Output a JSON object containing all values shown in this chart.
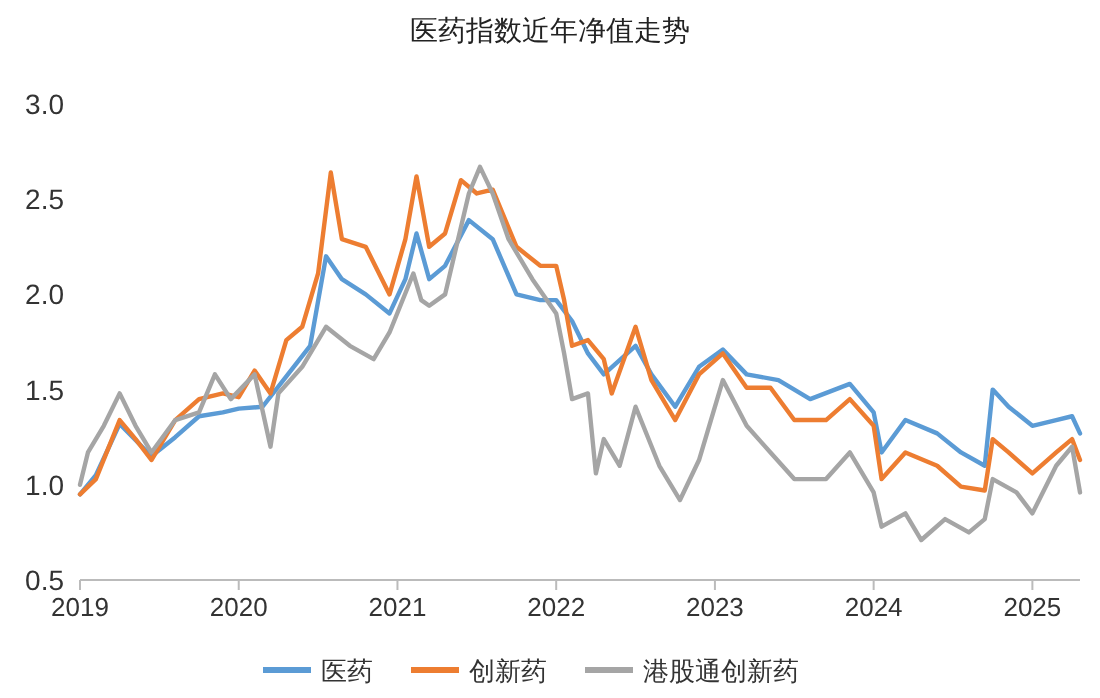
{
  "chart_data": {
    "type": "line",
    "title": "医药指数近年净值走势",
    "legend": "bottom",
    "xlim": [
      2019,
      2025.3
    ],
    "xticks": [
      2019,
      2020,
      2021,
      2022,
      2023,
      2024,
      2025
    ],
    "ylim": [
      0.5,
      3.0
    ],
    "yticks": [
      {
        "value": 0.5,
        "label": "0.5"
      },
      {
        "value": 1.0,
        "label": "1.0"
      },
      {
        "value": 1.5,
        "label": "1.5"
      },
      {
        "value": 2.0,
        "label": "2.0"
      },
      {
        "value": 2.5,
        "label": "2.5"
      },
      {
        "value": 3.0,
        "label": "3.0"
      }
    ],
    "series": [
      {
        "name": "医药",
        "color": "#5b9bd5",
        "x": [
          2019.0,
          2019.1,
          2019.25,
          2019.45,
          2019.6,
          2019.75,
          2019.9,
          2020.0,
          2020.15,
          2020.3,
          2020.45,
          2020.55,
          2020.65,
          2020.8,
          2020.95,
          2021.05,
          2021.12,
          2021.2,
          2021.3,
          2021.45,
          2021.6,
          2021.75,
          2021.9,
          2022.0,
          2022.1,
          2022.2,
          2022.3,
          2022.5,
          2022.6,
          2022.75,
          2022.9,
          2023.05,
          2023.2,
          2023.4,
          2023.6,
          2023.85,
          2024.0,
          2024.05,
          2024.2,
          2024.4,
          2024.55,
          2024.7,
          2024.75,
          2024.85,
          2025.0,
          2025.15,
          2025.25,
          2025.3
        ],
        "values": [
          0.95,
          1.05,
          1.32,
          1.15,
          1.25,
          1.36,
          1.38,
          1.4,
          1.41,
          1.57,
          1.73,
          2.2,
          2.08,
          2.0,
          1.9,
          2.08,
          2.32,
          2.08,
          2.15,
          2.39,
          2.29,
          2.0,
          1.97,
          1.97,
          1.86,
          1.69,
          1.58,
          1.73,
          1.58,
          1.41,
          1.62,
          1.71,
          1.58,
          1.55,
          1.45,
          1.53,
          1.38,
          1.17,
          1.34,
          1.27,
          1.17,
          1.1,
          1.5,
          1.41,
          1.31,
          1.34,
          1.36,
          1.27
        ]
      },
      {
        "name": "创新药",
        "color": "#ed7d31",
        "x": [
          2019.0,
          2019.1,
          2019.25,
          2019.35,
          2019.45,
          2019.6,
          2019.75,
          2019.9,
          2020.0,
          2020.1,
          2020.2,
          2020.3,
          2020.4,
          2020.5,
          2020.58,
          2020.65,
          2020.8,
          2020.95,
          2021.05,
          2021.12,
          2021.2,
          2021.3,
          2021.4,
          2021.5,
          2021.6,
          2021.75,
          2021.9,
          2022.0,
          2022.05,
          2022.1,
          2022.2,
          2022.3,
          2022.35,
          2022.5,
          2022.6,
          2022.75,
          2022.9,
          2023.05,
          2023.2,
          2023.35,
          2023.5,
          2023.7,
          2023.85,
          2024.0,
          2024.05,
          2024.2,
          2024.4,
          2024.55,
          2024.7,
          2024.75,
          2024.85,
          2025.0,
          2025.15,
          2025.25,
          2025.3
        ],
        "values": [
          0.95,
          1.03,
          1.34,
          1.24,
          1.13,
          1.34,
          1.45,
          1.48,
          1.46,
          1.6,
          1.48,
          1.76,
          1.83,
          2.11,
          2.64,
          2.29,
          2.25,
          2.0,
          2.29,
          2.62,
          2.25,
          2.32,
          2.6,
          2.53,
          2.55,
          2.25,
          2.15,
          2.15,
          1.97,
          1.73,
          1.76,
          1.66,
          1.48,
          1.83,
          1.55,
          1.34,
          1.58,
          1.69,
          1.51,
          1.51,
          1.34,
          1.34,
          1.45,
          1.31,
          1.03,
          1.17,
          1.1,
          0.99,
          0.97,
          1.24,
          1.17,
          1.06,
          1.17,
          1.24,
          1.13
        ]
      },
      {
        "name": "港股通创新药",
        "color": "#a5a5a5",
        "x": [
          2019.0,
          2019.05,
          2019.15,
          2019.25,
          2019.35,
          2019.45,
          2019.6,
          2019.75,
          2019.85,
          2019.95,
          2020.1,
          2020.2,
          2020.25,
          2020.4,
          2020.55,
          2020.7,
          2020.85,
          2020.95,
          2021.1,
          2021.15,
          2021.2,
          2021.3,
          2021.45,
          2021.52,
          2021.6,
          2021.7,
          2021.85,
          2022.0,
          2022.05,
          2022.1,
          2022.2,
          2022.25,
          2022.3,
          2022.4,
          2022.5,
          2022.65,
          2022.78,
          2022.9,
          2023.05,
          2023.2,
          2023.35,
          2023.5,
          2023.7,
          2023.85,
          2024.0,
          2024.05,
          2024.2,
          2024.3,
          2024.45,
          2024.6,
          2024.7,
          2024.75,
          2024.9,
          2025.0,
          2025.15,
          2025.25,
          2025.3
        ],
        "values": [
          1.0,
          1.17,
          1.31,
          1.48,
          1.31,
          1.17,
          1.34,
          1.38,
          1.58,
          1.45,
          1.58,
          1.2,
          1.48,
          1.62,
          1.83,
          1.73,
          1.66,
          1.8,
          2.11,
          1.97,
          1.94,
          2.0,
          2.53,
          2.67,
          2.53,
          2.29,
          2.08,
          1.9,
          1.69,
          1.45,
          1.48,
          1.06,
          1.24,
          1.1,
          1.41,
          1.1,
          0.92,
          1.13,
          1.55,
          1.31,
          1.17,
          1.03,
          1.03,
          1.17,
          0.96,
          0.78,
          0.85,
          0.71,
          0.82,
          0.75,
          0.82,
          1.03,
          0.96,
          0.85,
          1.1,
          1.2,
          0.96
        ]
      }
    ]
  }
}
